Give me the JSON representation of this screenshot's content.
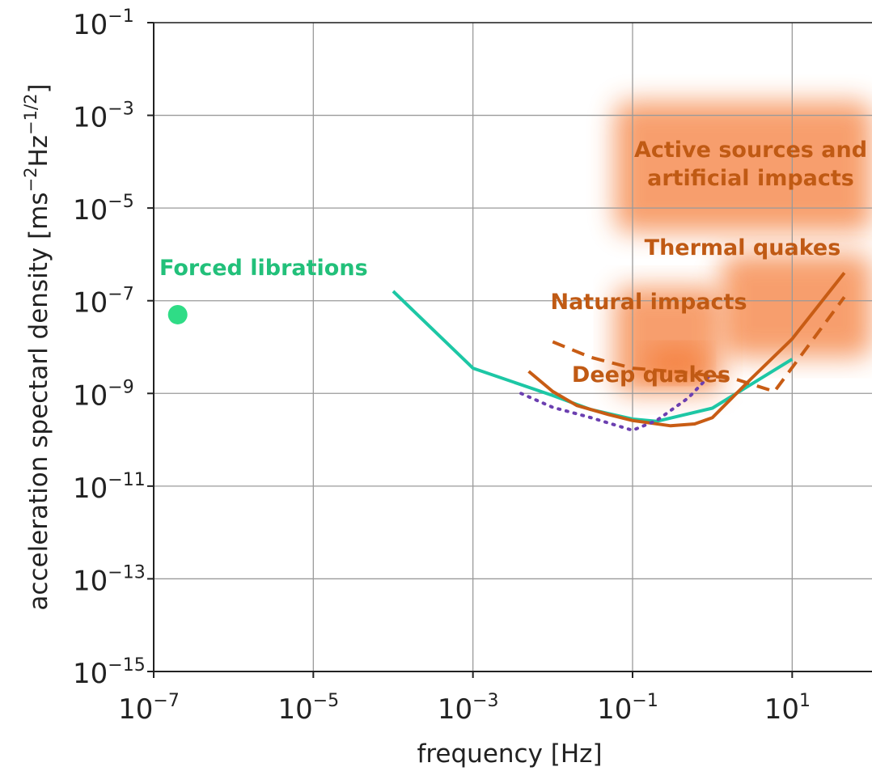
{
  "chart_data": {
    "type": "line",
    "xlabel": "frequency [Hz]",
    "ylabel_parts": {
      "pre": "acceleration spectarl density [ms",
      "exp1": "−2",
      "mid": "Hz",
      "exp2": "−1/2",
      "post": "]"
    },
    "x_scale": "log",
    "y_scale": "log",
    "xlim": [
      1e-07,
      100
    ],
    "ylim": [
      1e-15,
      0.1
    ],
    "grid": true,
    "x_ticks": [
      {
        "base": "10",
        "exp": "−7",
        "value": 1e-07
      },
      {
        "base": "10",
        "exp": "−5",
        "value": 1e-05
      },
      {
        "base": "10",
        "exp": "−3",
        "value": 0.001
      },
      {
        "base": "10",
        "exp": "−1",
        "value": 0.1
      },
      {
        "base": "10",
        "exp": "1",
        "value": 10
      }
    ],
    "y_ticks": [
      {
        "base": "10",
        "exp": "−1",
        "value": 0.1
      },
      {
        "base": "10",
        "exp": "−3",
        "value": 0.001
      },
      {
        "base": "10",
        "exp": "−5",
        "value": 1e-05
      },
      {
        "base": "10",
        "exp": "−7",
        "value": 1e-07
      },
      {
        "base": "10",
        "exp": "−9",
        "value": 1e-09
      },
      {
        "base": "10",
        "exp": "−11",
        "value": 1e-11
      },
      {
        "base": "10",
        "exp": "−13",
        "value": 1e-13
      },
      {
        "base": "10",
        "exp": "−15",
        "value": 1e-15
      }
    ],
    "regions": [
      {
        "label_lines": [
          "Active sources and",
          "artificial impacts"
        ],
        "x_range": [
          0.06,
          100
        ],
        "y_range": [
          3e-06,
          0.002
        ],
        "color": "#f47a35"
      },
      {
        "label_lines": [
          "Thermal quakes"
        ],
        "x_range": [
          1.3,
          100
        ],
        "y_range": [
          6e-09,
          1e-06
        ],
        "color": "#f47a35"
      },
      {
        "label_lines": [
          "Natural impacts"
        ],
        "x_range": [
          0.06,
          1.3
        ],
        "y_range": [
          1e-09,
          2e-07
        ],
        "color": "#f47a35"
      },
      {
        "label_lines": [
          "Deep quakes"
        ],
        "x_range": [
          0.15,
          0.8
        ],
        "y_range": [
          2e-09,
          1e-08
        ],
        "color": "#f47a35"
      }
    ],
    "series": [
      {
        "style": "solid",
        "color": "#1dc7a5",
        "x": [
          0.0001,
          0.001,
          0.01,
          0.03,
          0.1,
          0.2,
          1,
          10
        ],
        "y": [
          1.6e-07,
          3.5e-09,
          9e-10,
          4.5e-10,
          2.8e-10,
          2.5e-10,
          4.8e-10,
          5.5e-09
        ]
      },
      {
        "style": "solid",
        "color": "#c85c14",
        "x": [
          0.005,
          0.01,
          0.02,
          0.05,
          0.1,
          0.3,
          0.6,
          1,
          3,
          10,
          45
        ],
        "y": [
          3e-09,
          1.1e-09,
          5.5e-10,
          3.5e-10,
          2.6e-10,
          2e-10,
          2.2e-10,
          3e-10,
          2e-09,
          1.5e-08,
          4e-07
        ]
      },
      {
        "style": "dashed",
        "color": "#c85c14",
        "x": [
          0.01,
          0.03,
          0.1,
          0.5,
          2,
          6,
          45
        ],
        "y": [
          1.3e-08,
          6e-09,
          3.5e-09,
          2.8e-09,
          2e-09,
          1.1e-09,
          1.2e-07
        ]
      },
      {
        "style": "dotted",
        "color": "#6b3fb0",
        "x": [
          0.004,
          0.01,
          0.03,
          0.1,
          0.2,
          0.5,
          1
        ],
        "y": [
          1e-09,
          5e-10,
          3e-10,
          1.6e-10,
          2.6e-10,
          8e-10,
          2.8e-09
        ]
      }
    ],
    "markers": [
      {
        "x": 2e-07,
        "y": 5e-08,
        "color": "#2fdc86"
      }
    ],
    "annotations": [
      {
        "text": "Forced librations",
        "color": "#22c07a"
      },
      {
        "text": "Thermal quakes",
        "color": "#c05a14"
      },
      {
        "text": "Natural impacts",
        "color": "#c05a14"
      },
      {
        "text": "Deep quakes",
        "color": "#c05a14"
      }
    ]
  }
}
